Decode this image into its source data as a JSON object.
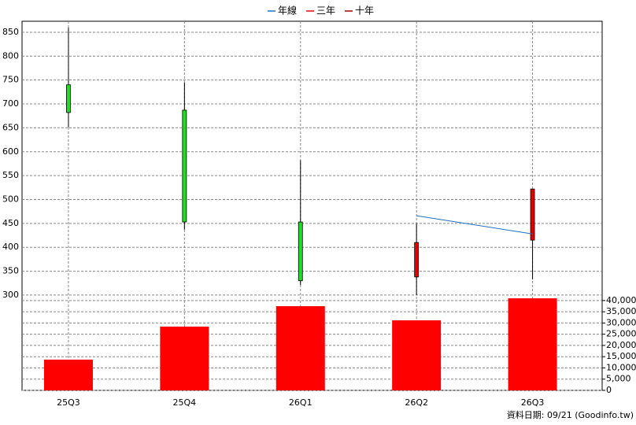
{
  "chart_data": {
    "type": "candlestick",
    "categories": [
      "25Q3",
      "25Q4",
      "26Q1",
      "26Q2",
      "26Q3"
    ],
    "open": [
      740,
      687,
      453,
      338,
      415
    ],
    "high": [
      860,
      745,
      582,
      450,
      522
    ],
    "low": [
      651,
      437,
      321,
      300,
      333
    ],
    "close": [
      682,
      453,
      330,
      410,
      522
    ],
    "up_color": "#e00000",
    "down_color": "#22dd22",
    "ylim": [
      290,
      873
    ],
    "yticks": [
      300,
      350,
      400,
      450,
      500,
      550,
      600,
      650,
      700,
      750,
      800,
      850
    ],
    "lines": [
      {
        "name": "年線",
        "color": "#1e6fc0",
        "values": [
          null,
          null,
          null,
          466,
          428
        ]
      },
      {
        "name": "三年",
        "color": "#ff0000",
        "values": [
          null,
          null,
          null,
          null,
          null
        ]
      },
      {
        "name": "十年",
        "color": "#a00000",
        "values": [
          null,
          null,
          null,
          null,
          null
        ]
      }
    ],
    "volume": {
      "color": "#ff0000",
      "values": [
        13700,
        28400,
        37500,
        31200,
        41000
      ]
    },
    "y2lim": [
      0,
      41000
    ],
    "y2ticks": [
      0,
      {
        "value": 5000,
        "label": "5,000"
      },
      {
        "value": 10000,
        "label": "10,000"
      },
      {
        "value": 15000,
        "label": "15,000"
      },
      {
        "value": 20000,
        "label": "20,000"
      },
      {
        "value": 25000,
        "label": "25,000"
      },
      {
        "value": 30000,
        "label": "30,000"
      },
      {
        "value": 35000,
        "label": "35,000"
      },
      {
        "value": 40000,
        "label": "40,000"
      }
    ],
    "grid": true,
    "footnote": "資料日期: 09/21  (Goodinfo.tw)"
  }
}
